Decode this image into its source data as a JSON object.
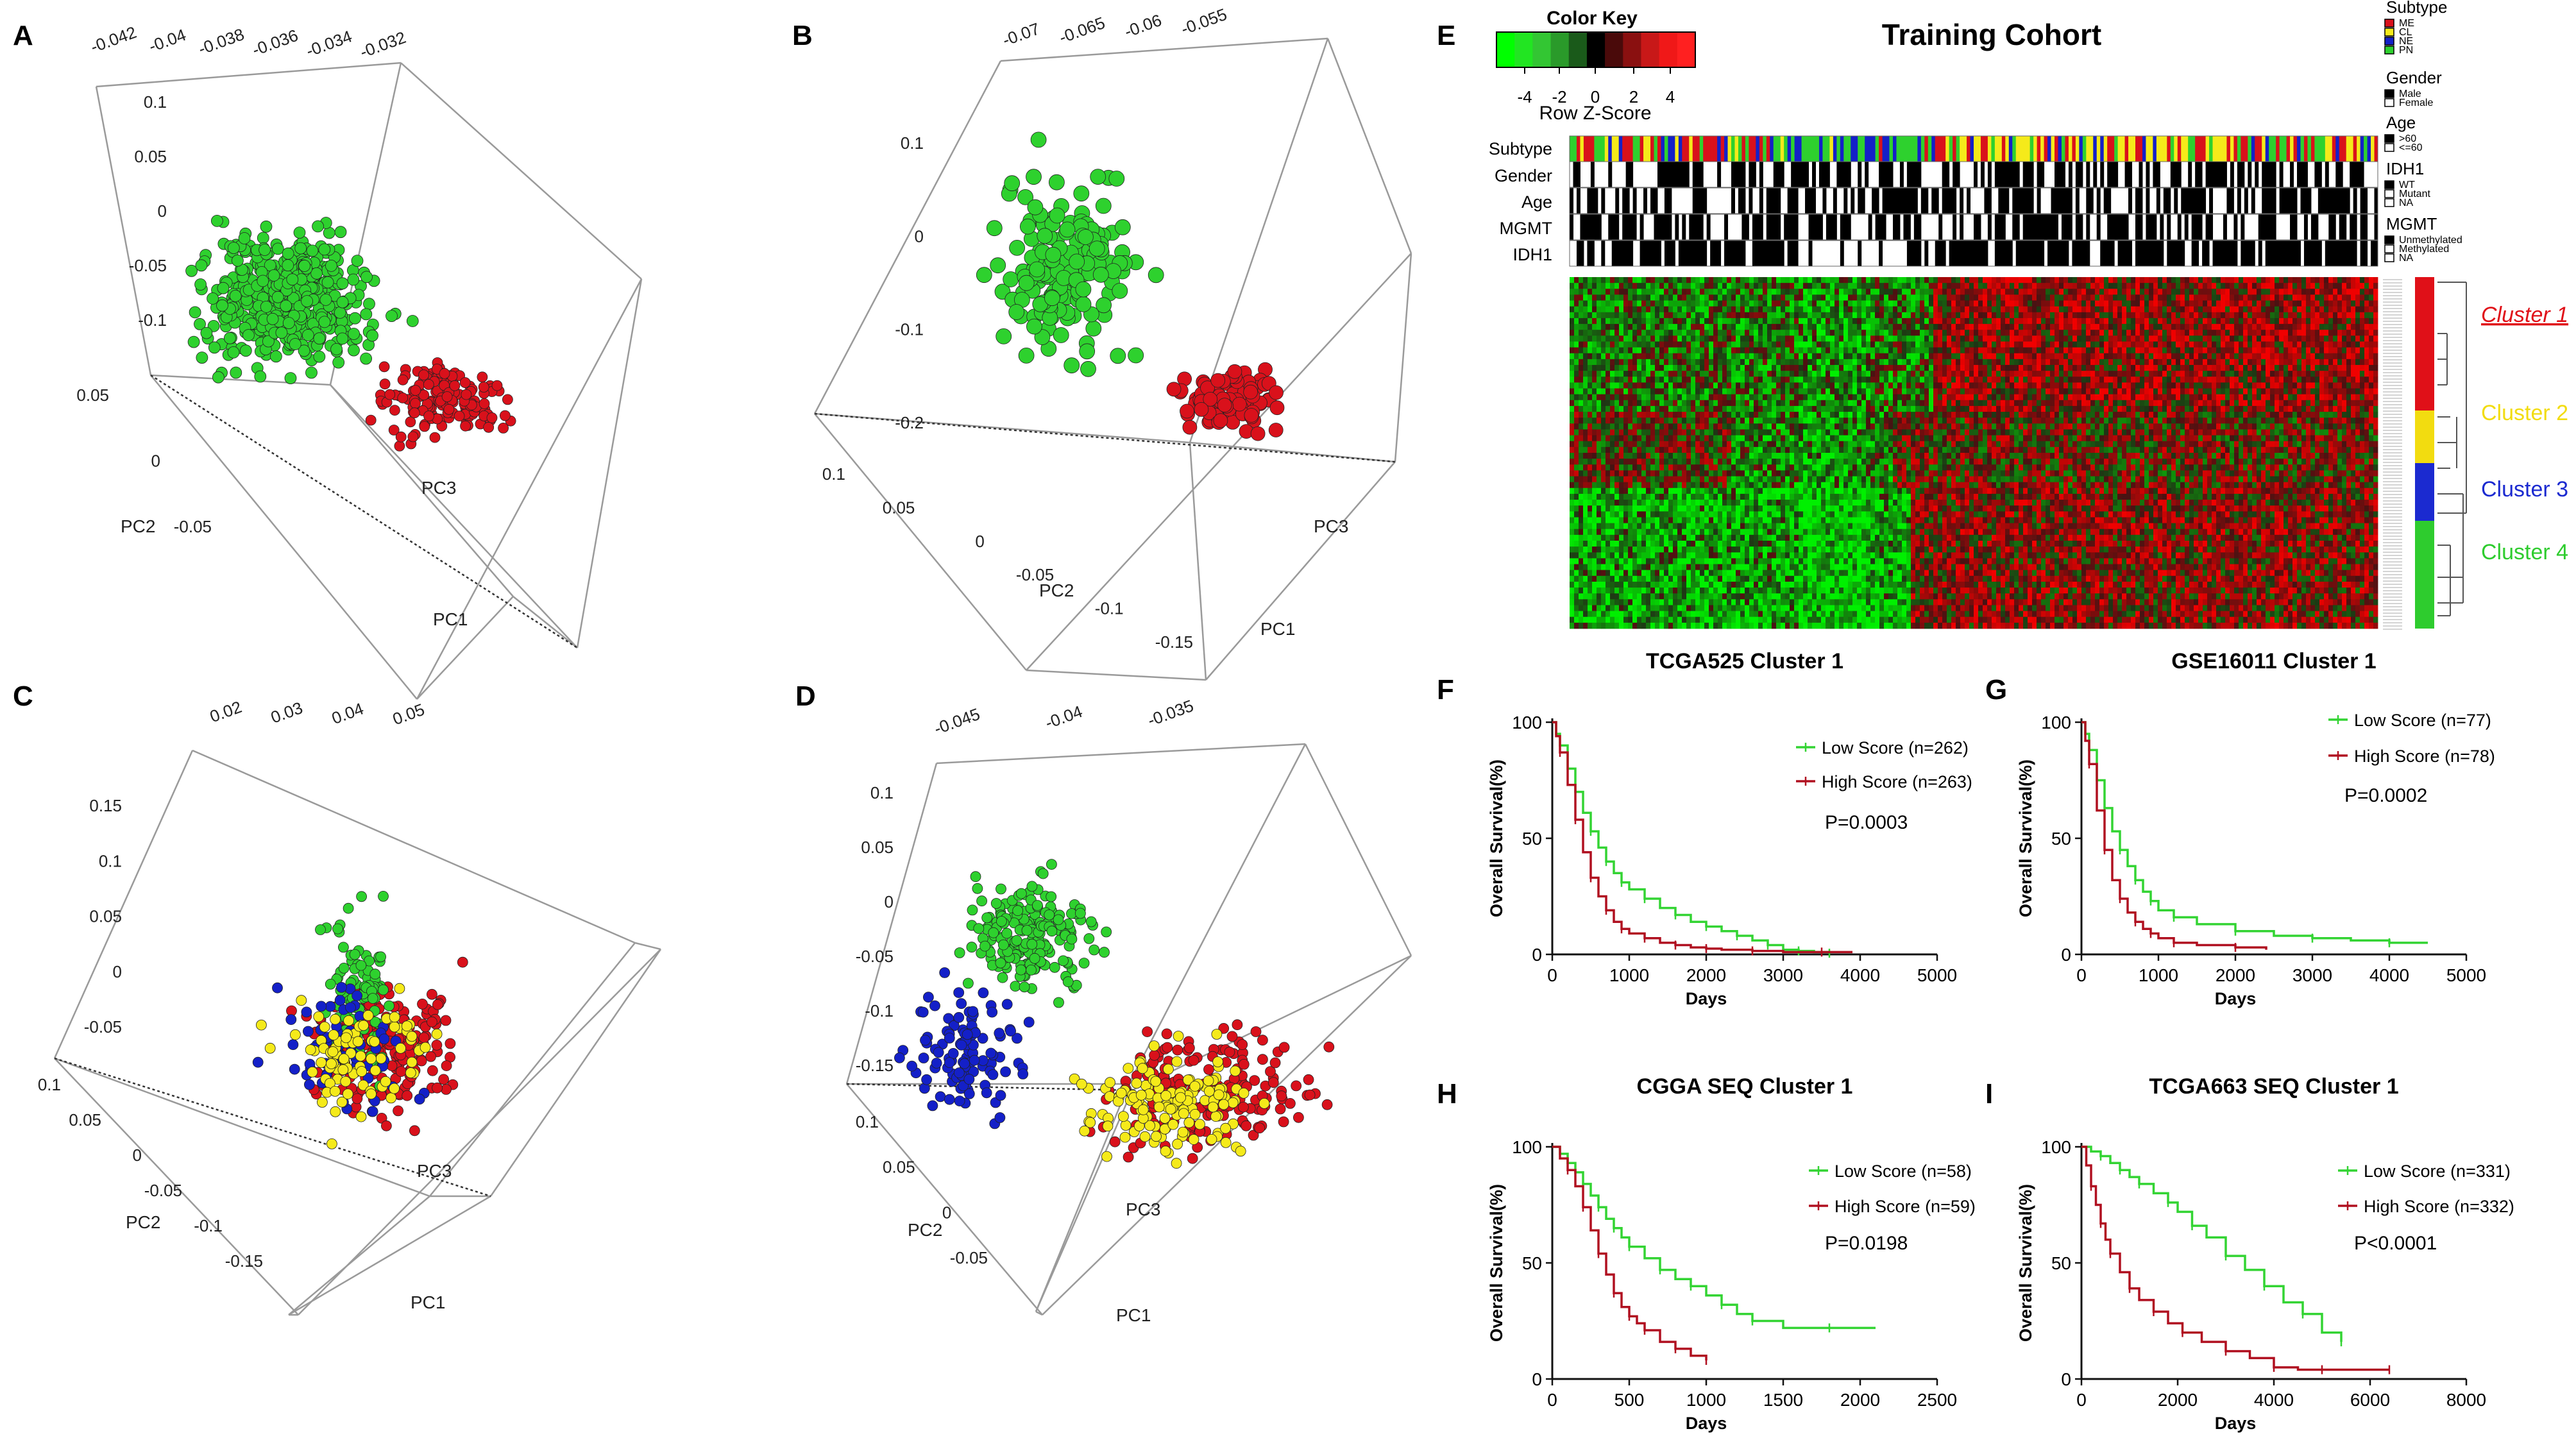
{
  "panel_letters": {
    "A": "A",
    "B": "B",
    "C": "C",
    "D": "D",
    "E": "E",
    "F": "F",
    "G": "G",
    "H": "H",
    "I": "I"
  },
  "colors": {
    "red": "#d9111b",
    "green": "#2ed12e",
    "blue": "#1420c8",
    "yellow": "#f5ea1a",
    "km_red": "#b01020",
    "km_green": "#33d433",
    "axis": "#111111",
    "box": "#9a9a9a"
  },
  "pca": {
    "A": {
      "ticks_top": [
        "-0.042",
        "-0.04",
        "-0.038",
        "-0.036",
        "-0.034",
        "-0.032"
      ],
      "ticks_left": [
        "0.1",
        "0.05",
        "0",
        "-0.05",
        "-0.1"
      ],
      "ticks_front": [
        "0.05",
        "0",
        "-0.05"
      ],
      "labels": {
        "pc2": "PC2",
        "pc3": "PC3",
        "pc1": "PC1"
      }
    },
    "B": {
      "ticks_top": [
        "-0.07",
        "-0.065",
        "-0.06",
        "-0.055"
      ],
      "ticks_left": [
        "0.1",
        "0",
        "-0.1",
        "-0.2"
      ],
      "ticks_front": [
        "0.1",
        "0.05",
        "0",
        "-0.05",
        "-0.1",
        "-0.15"
      ],
      "labels": {
        "pc2": "PC2",
        "pc3": "PC3",
        "pc1": "PC1"
      }
    },
    "C": {
      "ticks_top": [
        "0.02",
        "0.03",
        "0.04",
        "0.05"
      ],
      "ticks_left": [
        "0.15",
        "0.1",
        "0.05",
        "0",
        "-0.05"
      ],
      "ticks_front": [
        "0.1",
        "0.05",
        "0",
        "-0.05",
        "-0.1",
        "-0.15"
      ],
      "labels": {
        "pc2": "PC2",
        "pc3": "PC3",
        "pc1": "PC1"
      }
    },
    "D": {
      "ticks_top": [
        "-0.045",
        "-0.04",
        "-0.035"
      ],
      "ticks_left": [
        "0.1",
        "0.05",
        "0",
        "-0.05",
        "-0.1",
        "-0.15"
      ],
      "ticks_front": [
        "0.1",
        "0.05",
        "0",
        "-0.05"
      ],
      "labels": {
        "pc2": "PC2",
        "pc3": "PC3",
        "pc1": "PC1"
      }
    }
  },
  "heatmap": {
    "title": "Training Cohort",
    "color_key": {
      "title": "Color Key",
      "ticks": [
        "-4",
        "-2",
        "0",
        "2",
        "4"
      ],
      "label": "Row Z-Score"
    },
    "track_labels": [
      "Subtype",
      "Gender",
      "Age",
      "MGMT",
      "IDH1"
    ],
    "legend": {
      "subtype": {
        "title": "Subtype",
        "items": [
          "ME",
          "CL",
          "NE",
          "PN"
        ],
        "colors": [
          "#d9111b",
          "#f5ea1a",
          "#1420c8",
          "#2ed12e"
        ]
      },
      "gender": {
        "title": "Gender",
        "items": [
          "Male",
          "Female"
        ]
      },
      "age": {
        "title": "Age",
        "items": [
          ">60",
          "<=60"
        ]
      },
      "idh1": {
        "title": "IDH1",
        "items": [
          "WT",
          "Mutant",
          "NA"
        ]
      },
      "mgmt": {
        "title": "MGMT",
        "items": [
          "Unmethylated",
          "Methylated",
          "NA"
        ]
      }
    },
    "clusters": [
      {
        "label": "Cluster 1",
        "color": "#e01018"
      },
      {
        "label": "Cluster 2",
        "color": "#f2dc10"
      },
      {
        "label": "Cluster 3",
        "color": "#1b2ad0"
      },
      {
        "label": "Cluster 4",
        "color": "#2ecc2e"
      }
    ]
  },
  "chart_data": [
    {
      "panel": "A",
      "type": "scatter",
      "projection": "3d",
      "x_axis": "PC1",
      "y_axis": "PC2",
      "z_axis": "PC3",
      "series": [
        {
          "name": "red",
          "color": "#d9111b",
          "n": 160
        },
        {
          "name": "green",
          "color": "#2ed12e",
          "n": 480
        }
      ]
    },
    {
      "panel": "B",
      "type": "scatter",
      "projection": "3d",
      "x_axis": "PC1",
      "y_axis": "PC2",
      "z_axis": "PC3",
      "series": [
        {
          "name": "red",
          "color": "#d9111b",
          "n": 100
        },
        {
          "name": "green",
          "color": "#2ed12e",
          "n": 170
        }
      ]
    },
    {
      "panel": "C",
      "type": "scatter",
      "projection": "3d",
      "x_axis": "PC1",
      "y_axis": "PC2",
      "z_axis": "PC3",
      "series": [
        {
          "name": "red",
          "color": "#d9111b",
          "n": 200
        },
        {
          "name": "green",
          "color": "#2ed12e",
          "n": 90
        },
        {
          "name": "blue",
          "color": "#1420c8",
          "n": 70
        },
        {
          "name": "yellow",
          "color": "#f5ea1a",
          "n": 90
        }
      ]
    },
    {
      "panel": "D",
      "type": "scatter",
      "projection": "3d",
      "x_axis": "PC1",
      "y_axis": "PC2",
      "z_axis": "PC3",
      "series": [
        {
          "name": "red",
          "color": "#d9111b",
          "n": 170
        },
        {
          "name": "green",
          "color": "#2ed12e",
          "n": 210
        },
        {
          "name": "blue",
          "color": "#1420c8",
          "n": 110
        },
        {
          "name": "yellow",
          "color": "#f5ea1a",
          "n": 140
        }
      ]
    },
    {
      "panel": "F",
      "type": "line",
      "title": "TCGA525 Cluster 1",
      "xlabel": "Days",
      "ylabel": "Overall Survival(%)",
      "xlim": [
        0,
        5000
      ],
      "xticks": [
        "0",
        "1000",
        "2000",
        "3000",
        "4000",
        "5000"
      ],
      "ylim": [
        0,
        100
      ],
      "yticks": [
        "0",
        "50",
        "100"
      ],
      "pvalue": "P=0.0003",
      "series": [
        {
          "name": "Low Score (n=262)",
          "color": "#33d433",
          "x": [
            0,
            50,
            100,
            200,
            300,
            400,
            500,
            600,
            700,
            800,
            900,
            1000,
            1200,
            1400,
            1600,
            1800,
            2000,
            2200,
            2400,
            2600,
            2800,
            3000,
            3200,
            3400,
            3600
          ],
          "y": [
            100,
            95,
            90,
            80,
            70,
            61,
            53,
            46,
            40,
            35,
            31,
            28,
            24,
            20,
            17,
            14,
            12,
            10,
            8,
            6,
            4,
            2,
            1.5,
            1,
            0.5
          ]
        },
        {
          "name": "High Score (n=263)",
          "color": "#b01020",
          "x": [
            0,
            50,
            100,
            200,
            300,
            400,
            500,
            600,
            700,
            800,
            900,
            1000,
            1200,
            1400,
            1600,
            1800,
            2000,
            2200,
            2600,
            3000,
            3500,
            3900
          ],
          "y": [
            100,
            94,
            87,
            73,
            58,
            44,
            33,
            25,
            19,
            14,
            11,
            9,
            7,
            5,
            4,
            3,
            2.5,
            2,
            1.5,
            1,
            1,
            1
          ]
        }
      ]
    },
    {
      "panel": "G",
      "type": "line",
      "title": "GSE16011 Cluster 1",
      "xlabel": "Days",
      "ylabel": "Overall Survival(%)",
      "xlim": [
        0,
        5000
      ],
      "xticks": [
        "0",
        "1000",
        "2000",
        "3000",
        "4000",
        "5000"
      ],
      "ylim": [
        0,
        100
      ],
      "yticks": [
        "0",
        "50",
        "100"
      ],
      "pvalue": "P=0.0002",
      "series": [
        {
          "name": "Low Score (n=77)",
          "color": "#33d433",
          "x": [
            0,
            50,
            100,
            200,
            300,
            400,
            500,
            600,
            700,
            800,
            900,
            1000,
            1200,
            1500,
            2000,
            2500,
            3000,
            3500,
            4000,
            4500
          ],
          "y": [
            100,
            95,
            88,
            75,
            63,
            53,
            45,
            38,
            32,
            27,
            23,
            19,
            16,
            13,
            10,
            8,
            7,
            6,
            5,
            5
          ]
        },
        {
          "name": "High Score (n=78)",
          "color": "#b01020",
          "x": [
            0,
            50,
            100,
            200,
            300,
            400,
            500,
            600,
            700,
            800,
            900,
            1000,
            1200,
            1500,
            2000,
            2400
          ],
          "y": [
            100,
            92,
            82,
            62,
            45,
            32,
            24,
            18,
            14,
            11,
            9,
            7,
            5,
            4,
            3,
            2
          ]
        }
      ]
    },
    {
      "panel": "H",
      "type": "line",
      "title": "CGGA SEQ Cluster 1",
      "xlabel": "Days",
      "ylabel": "Overall Survival(%)",
      "xlim": [
        0,
        2500
      ],
      "xticks": [
        "0",
        "500",
        "1000",
        "1500",
        "2000",
        "2500"
      ],
      "ylim": [
        0,
        100
      ],
      "yticks": [
        "0",
        "50",
        "100"
      ],
      "pvalue": "P=0.0198",
      "series": [
        {
          "name": "Low Score (n=58)",
          "color": "#33d433",
          "x": [
            0,
            50,
            100,
            150,
            200,
            250,
            300,
            350,
            400,
            450,
            500,
            600,
            700,
            800,
            900,
            1000,
            1100,
            1200,
            1300,
            1500,
            1800,
            2100
          ],
          "y": [
            100,
            97,
            93,
            89,
            84,
            79,
            74,
            69,
            65,
            61,
            57,
            52,
            47,
            43,
            40,
            36,
            32,
            28,
            25,
            22,
            22,
            22
          ]
        },
        {
          "name": "High Score (n=59)",
          "color": "#b01020",
          "x": [
            0,
            50,
            100,
            150,
            200,
            250,
            300,
            350,
            400,
            450,
            500,
            550,
            600,
            700,
            800,
            900,
            1000
          ],
          "y": [
            100,
            95,
            90,
            83,
            74,
            64,
            54,
            45,
            37,
            31,
            27,
            24,
            21,
            16,
            13,
            10,
            8
          ]
        }
      ]
    },
    {
      "panel": "I",
      "type": "line",
      "title": "TCGA663 SEQ Cluster 1",
      "xlabel": "Days",
      "ylabel": "Overall Survival(%)",
      "xlim": [
        0,
        8000
      ],
      "xticks": [
        "0",
        "2000",
        "4000",
        "6000",
        "8000"
      ],
      "ylim": [
        0,
        100
      ],
      "yticks": [
        "0",
        "50",
        "100"
      ],
      "pvalue": "P<0.0001",
      "series": [
        {
          "name": "Low Score (n=331)",
          "color": "#33d433",
          "x": [
            0,
            200,
            400,
            600,
            800,
            1000,
            1200,
            1500,
            1800,
            2000,
            2300,
            2600,
            3000,
            3400,
            3800,
            4200,
            4600,
            5000,
            5400
          ],
          "y": [
            100,
            98,
            96,
            93,
            90,
            87,
            84,
            80,
            76,
            72,
            66,
            61,
            53,
            47,
            40,
            33,
            28,
            20,
            16
          ]
        },
        {
          "name": "High Score (n=332)",
          "color": "#b01020",
          "x": [
            0,
            100,
            200,
            300,
            400,
            500,
            600,
            800,
            1000,
            1200,
            1500,
            1800,
            2100,
            2500,
            3000,
            3500,
            4000,
            4500,
            5000,
            5500,
            6400
          ],
          "y": [
            100,
            92,
            83,
            75,
            67,
            60,
            54,
            46,
            39,
            34,
            29,
            24,
            20,
            16,
            12,
            9,
            5,
            4,
            4,
            4,
            4
          ]
        }
      ]
    }
  ]
}
